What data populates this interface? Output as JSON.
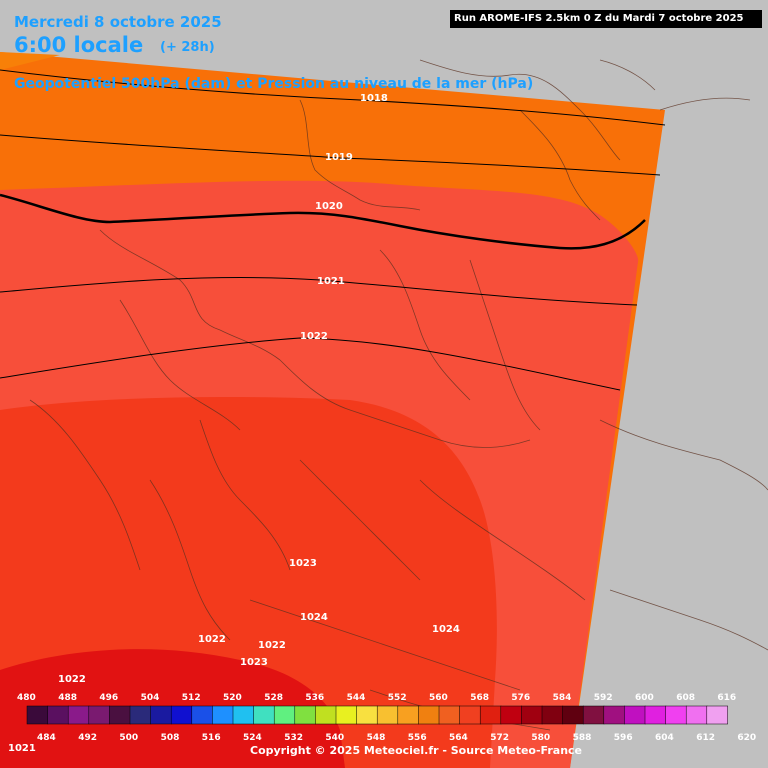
{
  "header": {
    "date": "Mercredi 8 octobre 2025",
    "time": "6:00 locale",
    "lead": "(+ 28h)",
    "parameter": "Geopotentiel 500hPa (dam) et Pression au niveau de la mer (hPa)",
    "run": "Run AROME-IFS 2.5km 0 Z du Mardi 7 octobre 2025"
  },
  "isobars": [
    {
      "label": "1018",
      "value": 1018
    },
    {
      "label": "1019",
      "value": 1019
    },
    {
      "label": "1020",
      "value": 1020
    },
    {
      "label": "1021",
      "value": 1021
    },
    {
      "label": "1022",
      "value": 1022
    },
    {
      "label": "1023",
      "value": 1023
    },
    {
      "label": "1024",
      "value": 1024
    },
    {
      "label": "1024",
      "value": 1024
    },
    {
      "label": "1022",
      "value": 1022
    },
    {
      "label": "1022",
      "value": 1022
    },
    {
      "label": "1023",
      "value": 1023
    },
    {
      "label": "1022",
      "value": 1022
    },
    {
      "label": "1021",
      "value": 1021
    }
  ],
  "legend": {
    "top_labels": [
      "480",
      "488",
      "496",
      "504",
      "512",
      "520",
      "528",
      "536",
      "544",
      "552",
      "560",
      "568",
      "576",
      "584",
      "592",
      "600",
      "608",
      "616"
    ],
    "bottom_labels": [
      "484",
      "492",
      "500",
      "508",
      "516",
      "524",
      "532",
      "540",
      "548",
      "556",
      "564",
      "572",
      "580",
      "588",
      "596",
      "604",
      "612",
      "620"
    ],
    "colors": [
      "#3a0a3a",
      "#5a1060",
      "#8a1a8a",
      "#7a1a70",
      "#4a1040",
      "#2a2a7a",
      "#1a1aa0",
      "#1010d0",
      "#1a50e8",
      "#1e90ff",
      "#20c0f0",
      "#40e0c0",
      "#60f080",
      "#80e040",
      "#c0e020",
      "#e8f020",
      "#f8e040",
      "#f8c030",
      "#f8a020",
      "#f08010",
      "#f06020",
      "#f04020",
      "#e02010",
      "#c00010",
      "#a00010",
      "#800010",
      "#600010",
      "#801040",
      "#a01080",
      "#c010c0",
      "#e020e0",
      "#f040f0",
      "#f070f0",
      "#f0a0f0"
    ]
  },
  "copyright": "Copyright © 2025 Meteociel.fr - Source Meteo-France",
  "colors": {
    "geopot_572": "#f87008",
    "geopot_576": "#f74f3a",
    "geopot_580": "#f33a1c",
    "geopot_584": "#e11212",
    "outside": "#c0c0c0",
    "title": "#1ea0ff"
  }
}
